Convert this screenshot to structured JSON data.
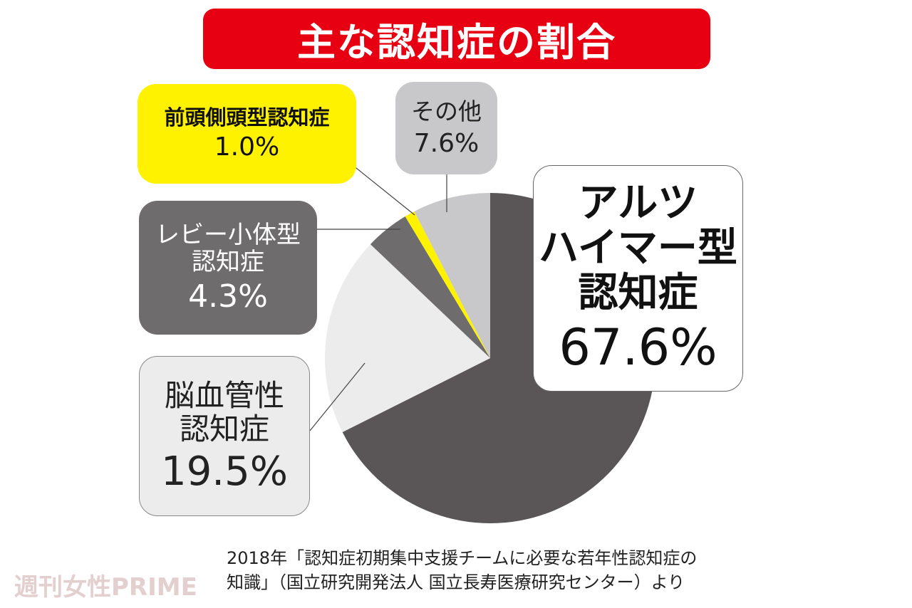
{
  "chart_data": {
    "type": "pie",
    "title": "主な認知症の割合",
    "categories": [
      "アルツ\nハイマー型\n認知症",
      "脳血管性\n認知症",
      "レビー小体型\n認知症",
      "前頭側頭型認知症",
      "その他"
    ],
    "values": [
      67.6,
      19.5,
      4.3,
      1.0,
      7.6
    ],
    "value_labels": [
      "67.6%",
      "19.5%",
      "4.3%",
      "1.0%",
      "7.6%"
    ],
    "colors": [
      "#5a5657",
      "#ececec",
      "#6e6c6c",
      "#fff200",
      "#c8c8ca"
    ],
    "source": "2018年「認知症初期集中支援チームに必要な若年性認知症の\n知識」（国立研究開発法人 国立長寿医療研究センター）より",
    "watermark": "週刊女性PRIME"
  }
}
